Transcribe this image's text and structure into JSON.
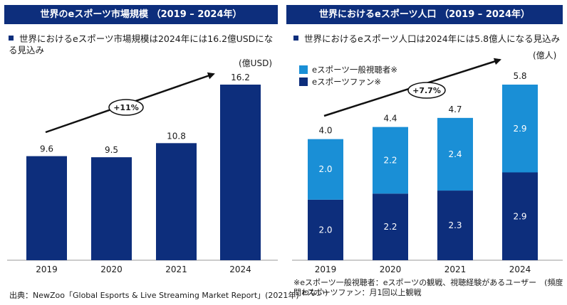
{
  "left_panel": {
    "title": "世界のeスポーツ市場規模 （2019 – 2024年）",
    "bullet": "世界におけるeスポーツ市場規模は2024年には16.2億USDになる見込み",
    "unit": "(億USD)",
    "cagr": "+11%"
  },
  "right_panel": {
    "title": "世界におけるeスポーツ人口 （2019 – 2024年）",
    "bullet": "世界におけるeスポーツ人口は2024年には5.8億人になる見込み",
    "unit": "(億人)",
    "cagr": "+7.7%",
    "legend": [
      "eスポーツ一般視聴者※",
      "eスポーツファン※"
    ]
  },
  "footnotes": {
    "source": "出典：NewZoo「Global Esports & Live Streaming Market Report」(2021年)",
    "note1": "※eスポーツ一般視聴者：eスポーツの観戦、視聴経験があるユーザー　(頻度問わない)",
    "note2": "eスポーツファン：月1回以上観戦"
  },
  "colors": {
    "dark": "#0d2e7c",
    "light": "#1a8fd6",
    "header": "#0d2e7c"
  },
  "chart_data": [
    {
      "type": "bar",
      "title": "世界のeスポーツ市場規模 （2019 – 2024年）",
      "categories": [
        "2019",
        "2020",
        "2021",
        "2024"
      ],
      "values": [
        9.6,
        9.5,
        10.8,
        16.2
      ],
      "value_labels": [
        "9.6",
        "9.5",
        "10.8",
        "16.2"
      ],
      "ylabel": "(億USD)",
      "ylim": [
        0,
        16.2
      ],
      "annotation": "+11%"
    },
    {
      "type": "bar",
      "stacked": true,
      "title": "世界におけるeスポーツ人口 （2019 – 2024年）",
      "categories": [
        "2019",
        "2020",
        "2021",
        "2024"
      ],
      "series": [
        {
          "name": "eスポーツファン※",
          "values": [
            2.0,
            2.2,
            2.3,
            2.9
          ],
          "labels": [
            "2.0",
            "2.2",
            "2.3",
            "2.9"
          ],
          "color": "#0d2e7c"
        },
        {
          "name": "eスポーツ一般視聴者※",
          "values": [
            2.0,
            2.2,
            2.4,
            2.9
          ],
          "labels": [
            "2.0",
            "2.2",
            "2.4",
            "2.9"
          ],
          "color": "#1a8fd6"
        }
      ],
      "totals": [
        "4.0",
        "4.4",
        "4.7",
        "5.8"
      ],
      "ylabel": "(億人)",
      "ylim": [
        0,
        5.8
      ],
      "annotation": "+7.7%"
    }
  ]
}
